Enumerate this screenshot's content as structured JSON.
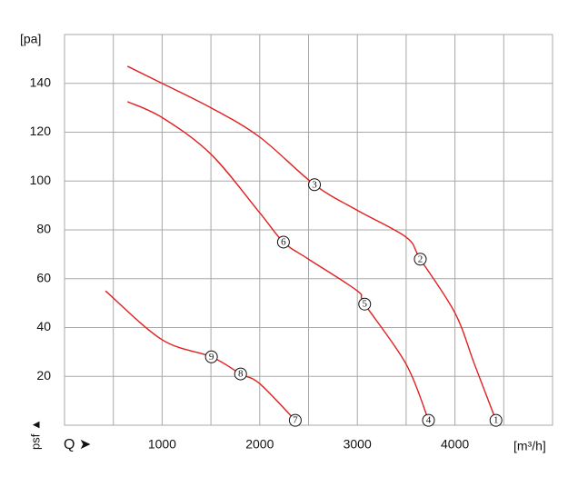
{
  "chart_data": {
    "type": "line",
    "y_label": "[pa]",
    "x_unit": "[m³/h]",
    "y_axis_symbol": "psf ▲",
    "x_axis_symbol": "Q ➤",
    "xlim": [
      0,
      5000
    ],
    "ylim": [
      0,
      160
    ],
    "xticks": [
      1000,
      2000,
      3000,
      4000
    ],
    "yticks": [
      20,
      40,
      60,
      80,
      100,
      120,
      140
    ],
    "x_minor_gridlines": [
      500,
      1500,
      2500,
      3500,
      4500
    ],
    "grid": true,
    "series": [
      {
        "color": "#e02020",
        "x": [
          645,
          1000,
          1500,
          2000,
          2561,
          3000,
          3500,
          3645,
          4000,
          4200,
          4420
        ],
        "values": [
          147,
          140,
          130,
          118,
          98.5,
          88,
          77,
          68,
          46,
          25,
          2
        ]
      },
      {
        "color": "#e02020",
        "x": [
          645,
          1000,
          1500,
          2000,
          2243,
          2500,
          3000,
          3075,
          3500,
          3729
        ],
        "values": [
          132.5,
          126,
          111,
          87,
          75,
          68,
          55,
          49.6,
          25,
          2
        ]
      },
      {
        "color": "#e02020",
        "x": [
          420,
          1000,
          1505,
          1804,
          2000,
          2364
        ],
        "values": [
          55,
          35,
          28,
          21,
          17,
          2
        ]
      }
    ],
    "points": [
      {
        "label": "1",
        "x": 4420,
        "y": 2
      },
      {
        "label": "2",
        "x": 3645,
        "y": 68
      },
      {
        "label": "3",
        "x": 2561,
        "y": 98.5
      },
      {
        "label": "4",
        "x": 3729,
        "y": 2
      },
      {
        "label": "5",
        "x": 3075,
        "y": 49.6
      },
      {
        "label": "6",
        "x": 2243,
        "y": 75
      },
      {
        "label": "7",
        "x": 2364,
        "y": 2
      },
      {
        "label": "8",
        "x": 1804,
        "y": 21
      },
      {
        "label": "9",
        "x": 1505,
        "y": 28
      }
    ]
  }
}
